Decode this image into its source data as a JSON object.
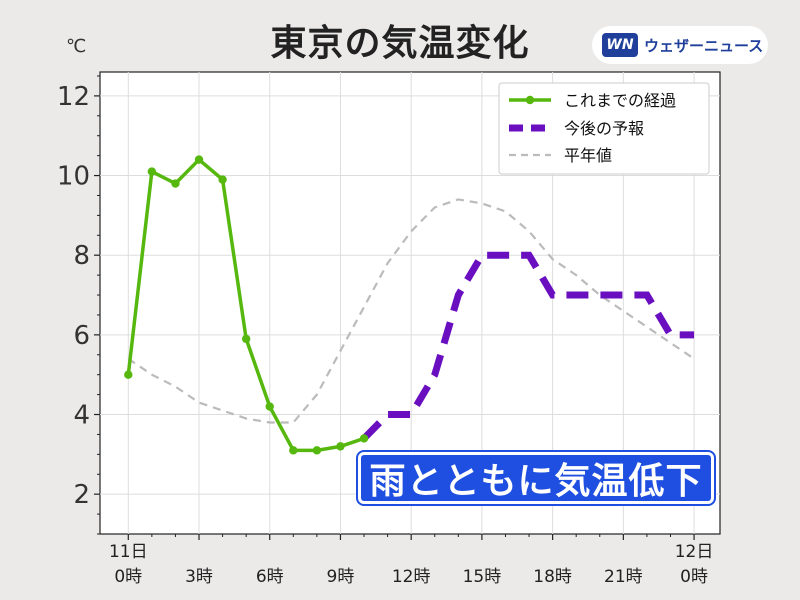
{
  "title": "東京の気温変化",
  "unit": "℃",
  "logo": {
    "mark": "WN",
    "text": "ウェザーニュース"
  },
  "annotation": "雨とともに気温低下",
  "chart_data": {
    "type": "line",
    "x_ticks": [
      {
        "x": 0,
        "line1": "11日",
        "line2": "0時"
      },
      {
        "x": 3,
        "line1": "",
        "line2": "3時"
      },
      {
        "x": 6,
        "line1": "",
        "line2": "6時"
      },
      {
        "x": 9,
        "line1": "",
        "line2": "9時"
      },
      {
        "x": 12,
        "line1": "",
        "line2": "12時"
      },
      {
        "x": 15,
        "line1": "",
        "line2": "15時"
      },
      {
        "x": 18,
        "line1": "",
        "line2": "18時"
      },
      {
        "x": 21,
        "line1": "",
        "line2": "21時"
      },
      {
        "x": 24,
        "line1": "12日",
        "line2": "0時"
      }
    ],
    "xlim": [
      -1.2,
      25.1
    ],
    "ylim": [
      1.0,
      12.6
    ],
    "y_ticks": [
      2,
      4,
      6,
      8,
      10,
      12
    ],
    "grid": true,
    "legend_position": "top-right",
    "series": [
      {
        "name": "これまでの経過",
        "style": "solid-markers",
        "color": "#56b80e",
        "x": [
          0,
          1,
          2,
          3,
          4,
          5,
          6,
          7,
          8,
          9,
          10
        ],
        "y": [
          5.0,
          10.1,
          9.8,
          10.4,
          9.9,
          5.9,
          4.2,
          3.1,
          3.1,
          3.2,
          3.4
        ]
      },
      {
        "name": "今後の予報",
        "style": "thick-dashed",
        "color": "#6a0fc0",
        "x": [
          10,
          11,
          12,
          13,
          14,
          15,
          16,
          17,
          18,
          19,
          20,
          21,
          22,
          23,
          24
        ],
        "y": [
          3.4,
          4.0,
          4.0,
          5.0,
          7.0,
          8.0,
          8.0,
          8.0,
          7.0,
          7.0,
          7.0,
          7.0,
          7.0,
          6.0,
          6.0
        ]
      },
      {
        "name": "平年値",
        "style": "dashed",
        "color": "#bbbbbb",
        "x": [
          0,
          1,
          2,
          3,
          4,
          5,
          6,
          7,
          8,
          9,
          10,
          11,
          12,
          13,
          14,
          15,
          16,
          17,
          18,
          19,
          20,
          21,
          22,
          23,
          24
        ],
        "y": [
          5.4,
          5.0,
          4.7,
          4.3,
          4.1,
          3.9,
          3.8,
          3.8,
          4.5,
          5.6,
          6.7,
          7.8,
          8.6,
          9.2,
          9.4,
          9.3,
          9.1,
          8.6,
          7.9,
          7.5,
          7.0,
          6.6,
          6.2,
          5.8,
          5.4
        ]
      }
    ]
  }
}
